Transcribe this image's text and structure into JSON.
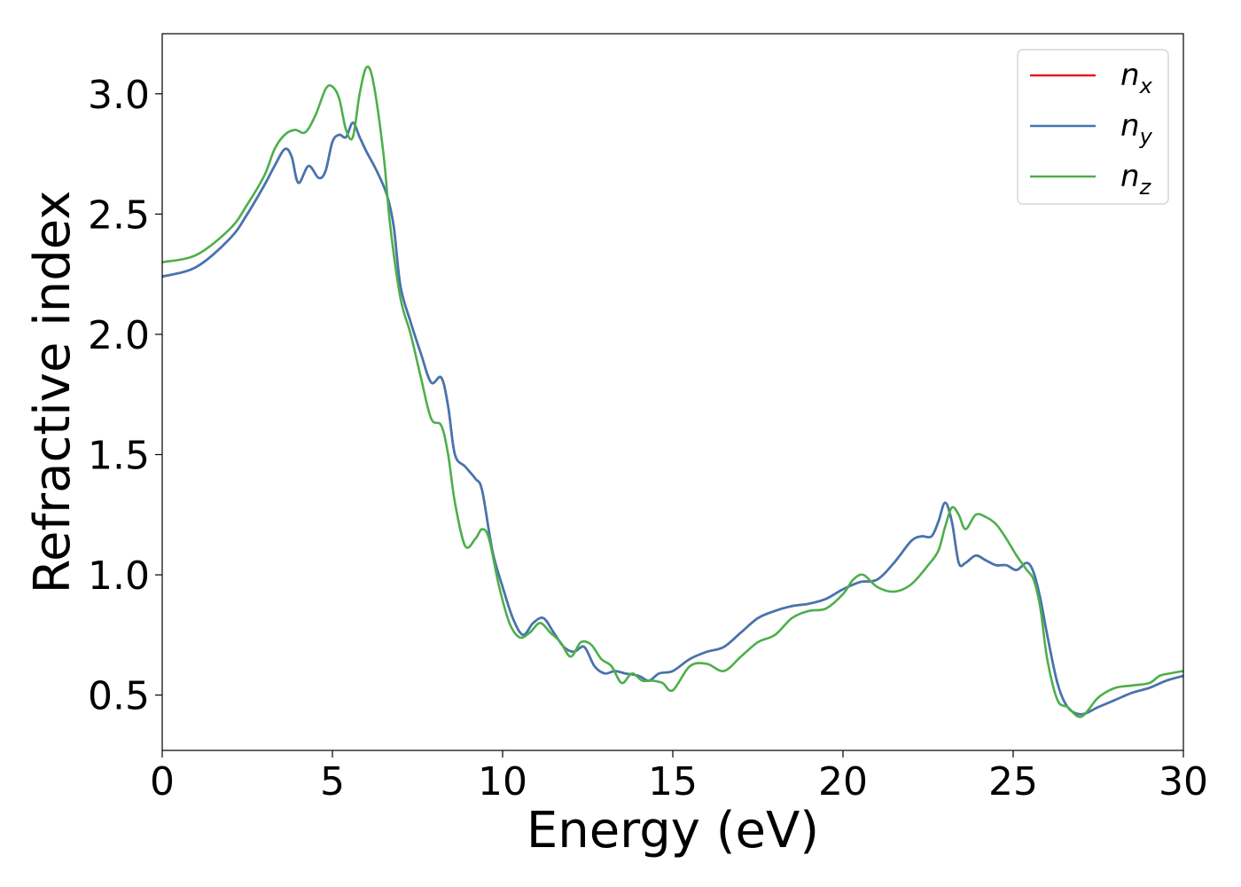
{
  "chart_data": {
    "type": "line",
    "xlabel": "Energy (eV)",
    "ylabel": "Refractive index",
    "xlim": [
      0,
      30
    ],
    "ylim": [
      0.27,
      3.25
    ],
    "xticks": [
      "0",
      "5",
      "10",
      "15",
      "20",
      "25",
      "30"
    ],
    "yticks": [
      "0.5",
      "1.0",
      "1.5",
      "2.0",
      "2.5",
      "3.0"
    ],
    "grid": false,
    "legend_position": "top-right",
    "series": [
      {
        "name": "n_x",
        "label_base": "n",
        "label_sub": "x",
        "color": "#e41a1c",
        "x": [
          0,
          1,
          2,
          2.5,
          3,
          3.3,
          3.6,
          3.8,
          4.0,
          4.3,
          4.6,
          4.8,
          5.0,
          5.2,
          5.4,
          5.6,
          5.8,
          6.0,
          6.3,
          6.6,
          6.8,
          7.0,
          7.3,
          7.6,
          7.9,
          8.2,
          8.4,
          8.6,
          8.9,
          9.2,
          9.4,
          9.7,
          10.0,
          10.3,
          10.6,
          10.9,
          11.2,
          11.5,
          11.8,
          12.1,
          12.4,
          12.7,
          13.0,
          13.3,
          13.6,
          14.0,
          14.3,
          14.6,
          15.0,
          15.5,
          16.0,
          16.5,
          17.0,
          17.5,
          18.0,
          18.5,
          19.0,
          19.5,
          20.0,
          20.5,
          21.0,
          21.5,
          22.0,
          22.3,
          22.6,
          22.8,
          23.0,
          23.2,
          23.4,
          23.6,
          23.9,
          24.2,
          24.5,
          24.8,
          25.1,
          25.4,
          25.6,
          25.8,
          26.0,
          26.3,
          26.6,
          27.0,
          27.5,
          28.0,
          28.5,
          29.0,
          29.5,
          30.0
        ],
        "values": [
          2.24,
          2.28,
          2.4,
          2.5,
          2.62,
          2.7,
          2.77,
          2.74,
          2.63,
          2.7,
          2.65,
          2.68,
          2.8,
          2.83,
          2.82,
          2.88,
          2.82,
          2.76,
          2.68,
          2.58,
          2.45,
          2.2,
          2.05,
          1.92,
          1.8,
          1.82,
          1.7,
          1.5,
          1.45,
          1.4,
          1.35,
          1.1,
          0.95,
          0.82,
          0.75,
          0.8,
          0.82,
          0.76,
          0.7,
          0.68,
          0.7,
          0.62,
          0.59,
          0.6,
          0.59,
          0.58,
          0.56,
          0.59,
          0.6,
          0.65,
          0.68,
          0.7,
          0.76,
          0.82,
          0.85,
          0.87,
          0.88,
          0.9,
          0.94,
          0.97,
          0.98,
          1.05,
          1.14,
          1.16,
          1.16,
          1.22,
          1.3,
          1.22,
          1.05,
          1.05,
          1.08,
          1.06,
          1.04,
          1.04,
          1.02,
          1.05,
          1.01,
          0.9,
          0.75,
          0.55,
          0.45,
          0.42,
          0.45,
          0.48,
          0.51,
          0.53,
          0.56,
          0.58
        ]
      },
      {
        "name": "n_y",
        "label_base": "n",
        "label_sub": "y",
        "color": "#3f77b4",
        "x": [
          0,
          1,
          2,
          2.5,
          3,
          3.3,
          3.6,
          3.8,
          4.0,
          4.3,
          4.6,
          4.8,
          5.0,
          5.2,
          5.4,
          5.6,
          5.8,
          6.0,
          6.3,
          6.6,
          6.8,
          7.0,
          7.3,
          7.6,
          7.9,
          8.2,
          8.4,
          8.6,
          8.9,
          9.2,
          9.4,
          9.7,
          10.0,
          10.3,
          10.6,
          10.9,
          11.2,
          11.5,
          11.8,
          12.1,
          12.4,
          12.7,
          13.0,
          13.3,
          13.6,
          14.0,
          14.3,
          14.6,
          15.0,
          15.5,
          16.0,
          16.5,
          17.0,
          17.5,
          18.0,
          18.5,
          19.0,
          19.5,
          20.0,
          20.5,
          21.0,
          21.5,
          22.0,
          22.3,
          22.6,
          22.8,
          23.0,
          23.2,
          23.4,
          23.6,
          23.9,
          24.2,
          24.5,
          24.8,
          25.1,
          25.4,
          25.6,
          25.8,
          26.0,
          26.3,
          26.6,
          27.0,
          27.5,
          28.0,
          28.5,
          29.0,
          29.5,
          30.0
        ],
        "values": [
          2.24,
          2.28,
          2.4,
          2.5,
          2.62,
          2.7,
          2.77,
          2.74,
          2.63,
          2.7,
          2.65,
          2.68,
          2.8,
          2.83,
          2.82,
          2.88,
          2.82,
          2.76,
          2.68,
          2.58,
          2.45,
          2.2,
          2.05,
          1.92,
          1.8,
          1.82,
          1.7,
          1.5,
          1.45,
          1.4,
          1.35,
          1.1,
          0.95,
          0.82,
          0.75,
          0.8,
          0.82,
          0.76,
          0.7,
          0.68,
          0.7,
          0.62,
          0.59,
          0.6,
          0.59,
          0.58,
          0.56,
          0.59,
          0.6,
          0.65,
          0.68,
          0.7,
          0.76,
          0.82,
          0.85,
          0.87,
          0.88,
          0.9,
          0.94,
          0.97,
          0.98,
          1.05,
          1.14,
          1.16,
          1.16,
          1.22,
          1.3,
          1.22,
          1.05,
          1.05,
          1.08,
          1.06,
          1.04,
          1.04,
          1.02,
          1.05,
          1.01,
          0.9,
          0.75,
          0.55,
          0.45,
          0.42,
          0.45,
          0.48,
          0.51,
          0.53,
          0.56,
          0.58
        ]
      },
      {
        "name": "n_z",
        "label_base": "n",
        "label_sub": "z",
        "color": "#4daf4a",
        "x": [
          0,
          1,
          2,
          2.5,
          3,
          3.3,
          3.6,
          3.9,
          4.2,
          4.5,
          4.8,
          5.0,
          5.2,
          5.4,
          5.6,
          5.8,
          6.0,
          6.2,
          6.5,
          6.7,
          7.0,
          7.3,
          7.6,
          7.9,
          8.2,
          8.4,
          8.6,
          8.9,
          9.2,
          9.4,
          9.6,
          9.9,
          10.2,
          10.5,
          10.8,
          11.1,
          11.4,
          11.7,
          12.0,
          12.3,
          12.6,
          12.9,
          13.2,
          13.5,
          13.8,
          14.1,
          14.4,
          14.7,
          15.0,
          15.5,
          16.0,
          16.5,
          17.0,
          17.5,
          18.0,
          18.5,
          19.0,
          19.5,
          20.0,
          20.3,
          20.6,
          21.0,
          21.5,
          22.0,
          22.5,
          22.8,
          23.0,
          23.2,
          23.4,
          23.6,
          23.9,
          24.2,
          24.5,
          24.8,
          25.1,
          25.4,
          25.6,
          25.8,
          26.0,
          26.3,
          26.6,
          27.0,
          27.5,
          28.0,
          28.5,
          29.0,
          29.3,
          29.6,
          30.0
        ],
        "values": [
          2.3,
          2.33,
          2.44,
          2.54,
          2.66,
          2.77,
          2.83,
          2.85,
          2.84,
          2.91,
          3.02,
          3.03,
          2.98,
          2.85,
          2.82,
          3.0,
          3.11,
          3.05,
          2.75,
          2.45,
          2.15,
          2.0,
          1.82,
          1.65,
          1.62,
          1.5,
          1.3,
          1.12,
          1.15,
          1.19,
          1.15,
          0.95,
          0.8,
          0.74,
          0.76,
          0.8,
          0.76,
          0.72,
          0.66,
          0.72,
          0.71,
          0.65,
          0.62,
          0.55,
          0.59,
          0.56,
          0.56,
          0.55,
          0.52,
          0.62,
          0.63,
          0.6,
          0.66,
          0.72,
          0.75,
          0.82,
          0.85,
          0.86,
          0.92,
          0.98,
          1.0,
          0.95,
          0.93,
          0.96,
          1.04,
          1.1,
          1.2,
          1.28,
          1.25,
          1.19,
          1.25,
          1.24,
          1.21,
          1.15,
          1.08,
          1.02,
          0.98,
          0.86,
          0.65,
          0.48,
          0.45,
          0.41,
          0.49,
          0.53,
          0.54,
          0.55,
          0.58,
          0.59,
          0.6
        ]
      }
    ]
  }
}
